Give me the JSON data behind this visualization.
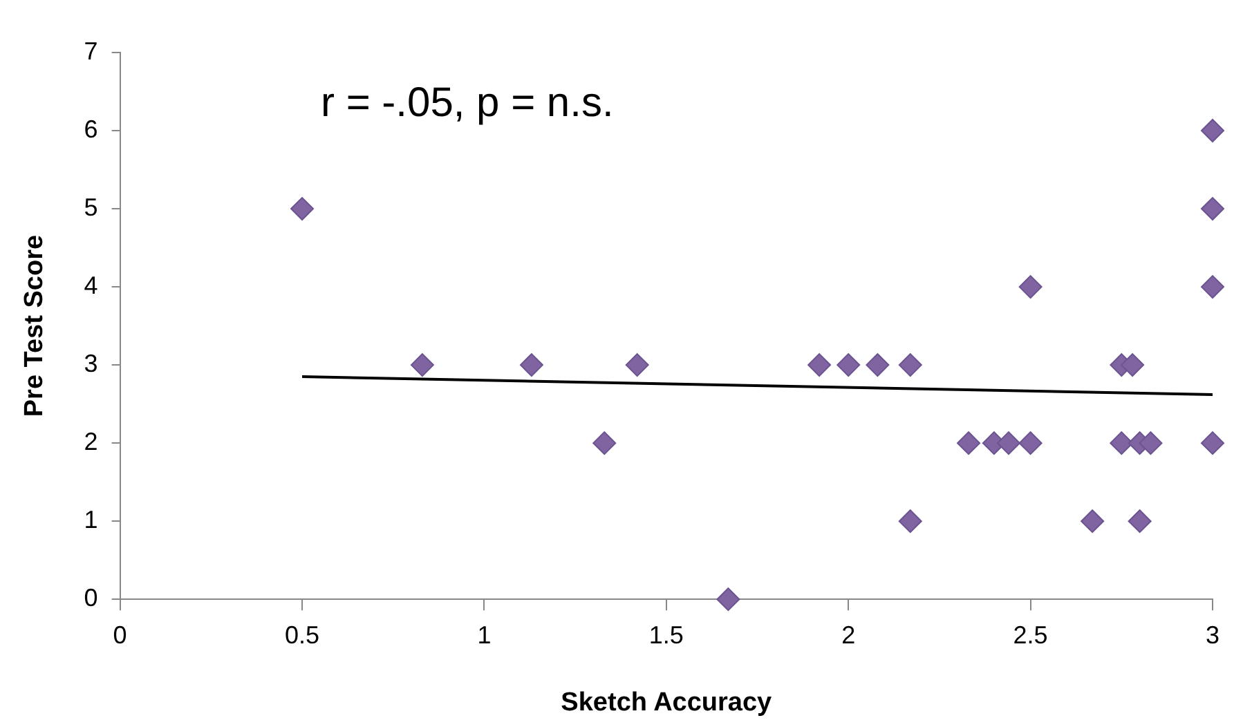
{
  "chart_data": {
    "type": "scatter",
    "xlabel": "Sketch Accuracy",
    "ylabel": "Pre Test Score",
    "annotations": [
      "r = -.05, p = n.s."
    ],
    "xlim": [
      0,
      3
    ],
    "xticks": [
      0,
      0.5,
      1,
      1.5,
      2,
      2.5,
      3
    ],
    "ylim": [
      0,
      7
    ],
    "yticks": [
      0,
      1,
      2,
      3,
      4,
      5,
      6,
      7
    ],
    "grid": false,
    "legend": false,
    "marker": "diamond",
    "series": [
      {
        "color": "#8064a2",
        "x": [
          0.5,
          0.83,
          1.13,
          1.33,
          1.42,
          1.67,
          1.92,
          2.0,
          2.08,
          2.17,
          2.17,
          2.33,
          2.4,
          2.44,
          2.5,
          2.5,
          2.67,
          2.75,
          2.78,
          2.75,
          2.8,
          2.83,
          2.8,
          3,
          3,
          3,
          3
        ],
        "values": [
          5,
          3,
          3,
          2,
          3,
          0,
          3,
          3,
          3,
          3,
          1,
          2,
          2,
          2,
          2,
          4,
          1,
          3,
          3,
          2,
          2,
          2,
          1,
          6,
          5,
          4,
          2
        ]
      },
      {
        "type": "line",
        "color": "#000000",
        "marker": "none",
        "x": [
          0.5,
          3
        ],
        "values": [
          2.85,
          2.62
        ]
      }
    ]
  }
}
